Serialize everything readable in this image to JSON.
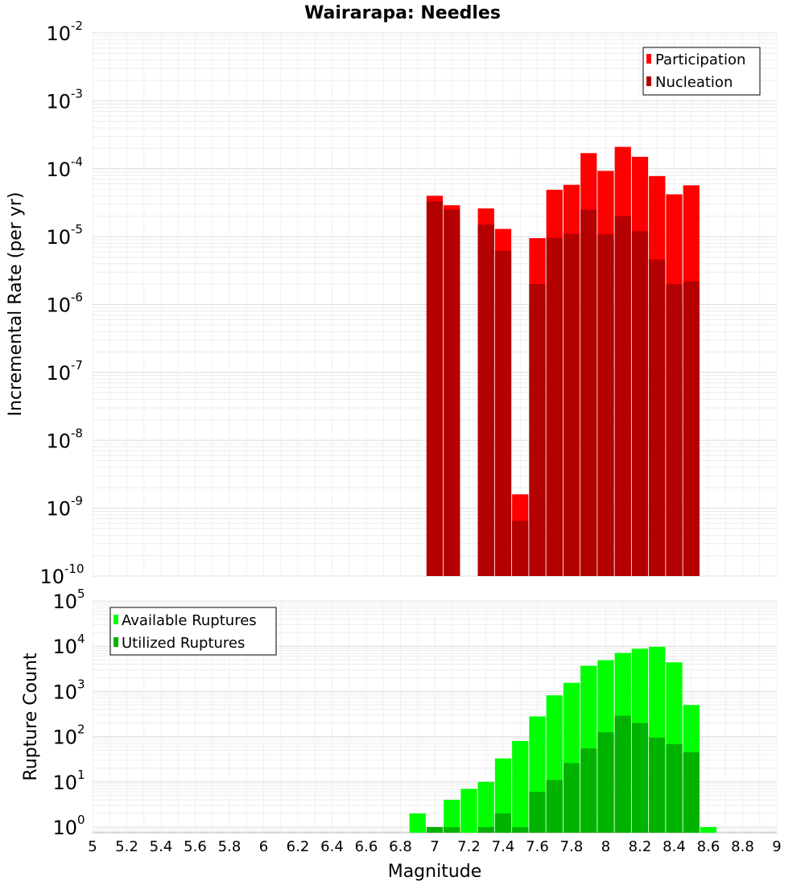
{
  "chart_data": [
    {
      "type": "bar",
      "title": "Wairarapa: Needles",
      "xlabel": "",
      "ylabel": "Incremental Rate (per yr)",
      "yscale": "log",
      "ylim": [
        1e-10,
        0.01
      ],
      "xlim": [
        5,
        9
      ],
      "grid": true,
      "legend_position": "top-right",
      "x": [
        7.0,
        7.1,
        7.2,
        7.3,
        7.4,
        7.5,
        7.6,
        7.7,
        7.8,
        7.9,
        8.0,
        8.1,
        8.2,
        8.3,
        8.4,
        8.5
      ],
      "series": [
        {
          "name": "Participation",
          "color": "#ff0000",
          "values": [
            4e-05,
            2.9e-05,
            null,
            2.6e-05,
            1.3e-05,
            1.6e-09,
            9.5e-06,
            4.9e-05,
            5.8e-05,
            0.00017,
            9.3e-05,
            0.00021,
            0.00015,
            7.8e-05,
            4.2e-05,
            5.7e-05
          ]
        },
        {
          "name": "Nucleation",
          "color": "#b30000",
          "values": [
            3.3e-05,
            2.5e-05,
            null,
            1.5e-05,
            6.2e-06,
            6.5e-10,
            2e-06,
            9.6e-06,
            1.1e-05,
            2.5e-05,
            1.1e-05,
            2e-05,
            1.2e-05,
            4.6e-06,
            2e-06,
            2.2e-06
          ]
        }
      ],
      "y_ticks": [
        {
          "base": "10",
          "exp": "-10",
          "value": 1e-10
        },
        {
          "base": "10",
          "exp": "-9",
          "value": 1e-09
        },
        {
          "base": "10",
          "exp": "-8",
          "value": 1e-08
        },
        {
          "base": "10",
          "exp": "-7",
          "value": 1e-07
        },
        {
          "base": "10",
          "exp": "-6",
          "value": 1e-06
        },
        {
          "base": "10",
          "exp": "-5",
          "value": 1e-05
        },
        {
          "base": "10",
          "exp": "-4",
          "value": 0.0001
        },
        {
          "base": "10",
          "exp": "-3",
          "value": 0.001
        },
        {
          "base": "10",
          "exp": "-2",
          "value": 0.01
        }
      ]
    },
    {
      "type": "bar",
      "title": "",
      "xlabel": "Magnitude",
      "ylabel": "Rupture Count",
      "yscale": "log",
      "ylim": [
        0.75,
        100000
      ],
      "xlim": [
        5,
        9
      ],
      "grid": true,
      "legend_position": "top-left",
      "x": [
        6.9,
        7.0,
        7.1,
        7.2,
        7.3,
        7.4,
        7.5,
        7.6,
        7.7,
        7.8,
        7.9,
        8.0,
        8.1,
        8.2,
        8.3,
        8.4,
        8.5,
        8.6
      ],
      "series": [
        {
          "name": "Available Ruptures",
          "color": "#00ff00",
          "values": [
            2,
            1,
            4,
            7,
            10,
            33,
            80,
            280,
            820,
            1550,
            3700,
            4900,
            7100,
            8800,
            9700,
            4400,
            500,
            1
          ]
        },
        {
          "name": "Utilized Ruptures",
          "color": "#00b300",
          "values": [
            null,
            1,
            1,
            null,
            1,
            2,
            1,
            6,
            11,
            26,
            55,
            125,
            290,
            200,
            95,
            68,
            45,
            null
          ]
        }
      ],
      "x_ticks": [
        "5",
        "5.2",
        "5.4",
        "5.6",
        "5.8",
        "6",
        "6.2",
        "6.4",
        "6.6",
        "6.8",
        "7",
        "7.2",
        "7.4",
        "7.6",
        "7.8",
        "8",
        "8.2",
        "8.4",
        "8.6",
        "8.8",
        "9"
      ],
      "y_ticks": [
        {
          "base": "10",
          "exp": "0",
          "value": 1
        },
        {
          "base": "10",
          "exp": "1",
          "value": 10
        },
        {
          "base": "10",
          "exp": "2",
          "value": 100
        },
        {
          "base": "10",
          "exp": "3",
          "value": 1000
        },
        {
          "base": "10",
          "exp": "4",
          "value": 10000
        },
        {
          "base": "10",
          "exp": "5",
          "value": 100000
        }
      ]
    }
  ]
}
